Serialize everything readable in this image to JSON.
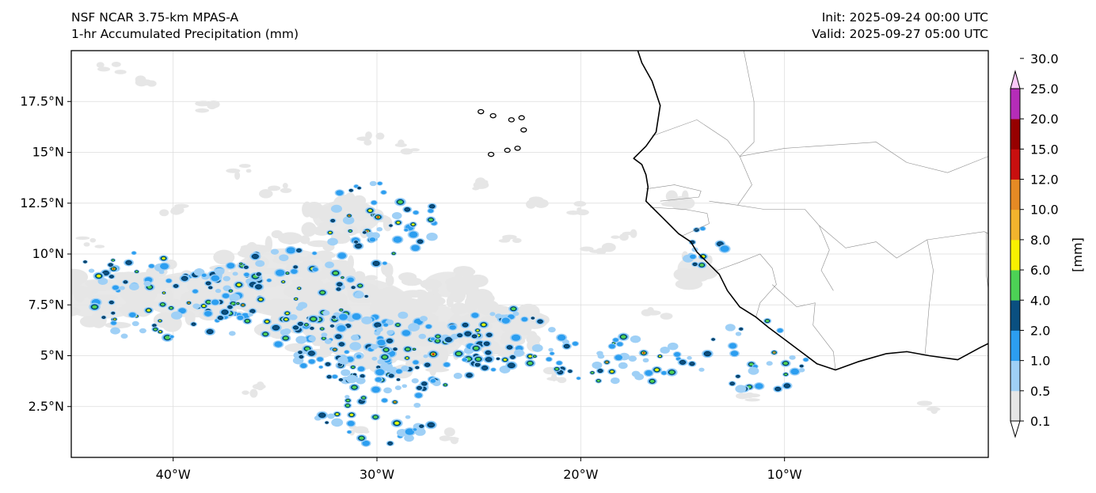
{
  "header": {
    "model": "NSF NCAR 3.75-km MPAS-A",
    "field": "1-hr Accumulated Precipitation (mm)",
    "init": "Init: 2025-09-24 00:00 UTC",
    "valid": "Valid: 2025-09-27 05:00 UTC"
  },
  "map": {
    "lon_range": [
      -45,
      0
    ],
    "lat_range": [
      0,
      20
    ],
    "lat_ticks": [
      {
        "value": 2.5,
        "label": "2.5°N"
      },
      {
        "value": 5,
        "label": "5°N"
      },
      {
        "value": 7.5,
        "label": "7.5°N"
      },
      {
        "value": 10,
        "label": "10°N"
      },
      {
        "value": 12.5,
        "label": "12.5°N"
      },
      {
        "value": 15,
        "label": "15°N"
      },
      {
        "value": 17.5,
        "label": "17.5°N"
      }
    ],
    "lon_ticks": [
      {
        "value": -40,
        "label": "40°W"
      },
      {
        "value": -30,
        "label": "30°W"
      },
      {
        "value": -20,
        "label": "20°W"
      },
      {
        "value": -10,
        "label": "10°W"
      }
    ],
    "coastline": [
      [
        -17.2,
        20.0
      ],
      [
        -17.0,
        19.4
      ],
      [
        -16.5,
        18.5
      ],
      [
        -16.1,
        17.3
      ],
      [
        -16.3,
        16.0
      ],
      [
        -16.8,
        15.3
      ],
      [
        -17.4,
        14.7
      ],
      [
        -17.0,
        14.4
      ],
      [
        -16.8,
        13.9
      ],
      [
        -16.7,
        13.3
      ],
      [
        -16.8,
        12.6
      ],
      [
        -16.4,
        12.2
      ],
      [
        -16.0,
        11.8
      ],
      [
        -15.6,
        11.4
      ],
      [
        -15.2,
        11.0
      ],
      [
        -14.6,
        10.6
      ],
      [
        -14.3,
        10.1
      ],
      [
        -13.7,
        9.5
      ],
      [
        -13.2,
        9.0
      ],
      [
        -12.8,
        8.2
      ],
      [
        -12.2,
        7.4
      ],
      [
        -11.4,
        6.9
      ],
      [
        -10.8,
        6.4
      ],
      [
        -10.0,
        5.8
      ],
      [
        -9.2,
        5.2
      ],
      [
        -8.4,
        4.6
      ],
      [
        -7.5,
        4.3
      ],
      [
        -6.4,
        4.7
      ],
      [
        -5.0,
        5.1
      ],
      [
        -4.0,
        5.2
      ],
      [
        -2.9,
        5.0
      ],
      [
        -1.5,
        4.8
      ],
      [
        -0.4,
        5.4
      ],
      [
        0.0,
        5.6
      ]
    ],
    "islands": [
      {
        "lon": -24.9,
        "lat": 17.0
      },
      {
        "lon": -24.3,
        "lat": 16.8
      },
      {
        "lon": -23.4,
        "lat": 16.6
      },
      {
        "lon": -22.8,
        "lat": 16.1
      },
      {
        "lon": -22.9,
        "lat": 16.7
      },
      {
        "lon": -23.6,
        "lat": 15.1
      },
      {
        "lon": -24.4,
        "lat": 14.9
      },
      {
        "lon": -23.1,
        "lat": 15.2
      }
    ],
    "borders": [
      [
        [
          -12.0,
          20.0
        ],
        [
          -11.5,
          17.5
        ],
        [
          -11.5,
          15.5
        ],
        [
          -12.2,
          14.8
        ]
      ],
      [
        [
          -16.5,
          15.8
        ],
        [
          -14.3,
          16.6
        ],
        [
          -12.8,
          15.6
        ],
        [
          -12.2,
          14.8
        ],
        [
          -11.6,
          13.4
        ],
        [
          -12.3,
          12.4
        ]
      ],
      [
        [
          -16.8,
          13.2
        ],
        [
          -15.4,
          13.4
        ],
        [
          -14.1,
          13.1
        ],
        [
          -14.2,
          12.8
        ],
        [
          -16.1,
          12.6
        ]
      ],
      [
        [
          -16.6,
          12.3
        ],
        [
          -14.9,
          12.2
        ],
        [
          -13.8,
          12.0
        ],
        [
          -13.7,
          11.5
        ],
        [
          -15.0,
          10.9
        ]
      ],
      [
        [
          -12.2,
          14.8
        ],
        [
          -10.0,
          15.2
        ],
        [
          -5.5,
          15.5
        ],
        [
          -4.0,
          14.5
        ],
        [
          -2.0,
          14.0
        ],
        [
          0.0,
          14.8
        ]
      ],
      [
        [
          -13.7,
          12.6
        ],
        [
          -12.3,
          12.4
        ],
        [
          -11.0,
          12.2
        ],
        [
          -9.0,
          12.2
        ],
        [
          -8.3,
          11.4
        ],
        [
          -7.8,
          10.2
        ],
        [
          -8.2,
          9.2
        ],
        [
          -7.6,
          8.2
        ]
      ],
      [
        [
          -13.3,
          9.2
        ],
        [
          -12.2,
          9.6
        ],
        [
          -11.2,
          10.0
        ],
        [
          -10.6,
          9.3
        ],
        [
          -10.4,
          8.5
        ],
        [
          -11.2,
          7.6
        ],
        [
          -11.4,
          6.9
        ]
      ],
      [
        [
          -10.6,
          8.5
        ],
        [
          -9.4,
          7.4
        ],
        [
          -8.5,
          7.6
        ],
        [
          -8.6,
          6.5
        ],
        [
          -7.6,
          5.2
        ],
        [
          -7.5,
          4.3
        ]
      ],
      [
        [
          -5.5,
          10.6
        ],
        [
          -4.5,
          9.8
        ],
        [
          -3.0,
          10.7
        ],
        [
          -2.7,
          9.2
        ],
        [
          -2.9,
          7.5
        ],
        [
          -3.1,
          5.1
        ]
      ],
      [
        [
          -3.0,
          10.7
        ],
        [
          -0.2,
          11.1
        ],
        [
          0.0,
          11.0
        ]
      ],
      [
        [
          -0.1,
          11.1
        ],
        [
          -0.1,
          9.0
        ],
        [
          0.3,
          6.2
        ],
        [
          0.0,
          5.7
        ]
      ],
      [
        [
          -5.5,
          10.6
        ],
        [
          -7.0,
          10.3
        ],
        [
          -8.3,
          11.4
        ]
      ]
    ],
    "light_rain_regions": [
      {
        "lon": -43.5,
        "lat": 7.8,
        "rlon": 2.8,
        "rlat": 1.4
      },
      {
        "lon": -39.0,
        "lat": 8.0,
        "rlon": 3.5,
        "rlat": 1.6
      },
      {
        "lon": -34.5,
        "lat": 8.6,
        "rlon": 3.8,
        "rlat": 2.4
      },
      {
        "lon": -31.0,
        "lat": 7.0,
        "rlon": 4.0,
        "rlat": 2.6
      },
      {
        "lon": -28.0,
        "lat": 6.2,
        "rlon": 3.2,
        "rlat": 2.2
      },
      {
        "lon": -24.5,
        "lat": 6.4,
        "rlon": 2.8,
        "rlat": 1.6
      },
      {
        "lon": -31.5,
        "lat": 11.8,
        "rlon": 2.2,
        "rlat": 1.2
      },
      {
        "lon": -26.5,
        "lat": 8.5,
        "rlon": 1.6,
        "rlat": 0.9
      },
      {
        "lon": -14.5,
        "lat": 9.3,
        "rlon": 1.0,
        "rlat": 0.8
      },
      {
        "lon": -15.0,
        "lat": 12.5,
        "rlon": 0.8,
        "rlat": 0.5
      }
    ],
    "light_patches": [
      {
        "lon": -43.0,
        "lat": 19.2
      },
      {
        "lon": -41.5,
        "lat": 18.4
      },
      {
        "lon": -38.5,
        "lat": 17.2
      },
      {
        "lon": -36.5,
        "lat": 14.1
      },
      {
        "lon": -35.0,
        "lat": 13.2
      },
      {
        "lon": -30.3,
        "lat": 15.6
      },
      {
        "lon": -28.6,
        "lat": 15.2
      },
      {
        "lon": -25.0,
        "lat": 13.4
      },
      {
        "lon": -22.0,
        "lat": 12.5
      },
      {
        "lon": -20.0,
        "lat": 12.2
      },
      {
        "lon": -17.8,
        "lat": 11.0
      },
      {
        "lon": -19.2,
        "lat": 10.2
      },
      {
        "lon": -16.3,
        "lat": 7.0
      },
      {
        "lon": -23.3,
        "lat": 10.7
      },
      {
        "lon": -21.0,
        "lat": 4.0
      },
      {
        "lon": -12.0,
        "lat": 2.8
      },
      {
        "lon": -3.0,
        "lat": 2.5
      },
      {
        "lon": -26.5,
        "lat": 1.0
      },
      {
        "lon": -40.0,
        "lat": 12.1
      },
      {
        "lon": -44.0,
        "lat": 10.6
      },
      {
        "lon": -36.0,
        "lat": 3.3
      },
      {
        "lon": -31.0,
        "lat": 1.3
      }
    ],
    "storm_regions": [
      {
        "lon": -40.0,
        "lat": 7.5,
        "rlon": 4.0,
        "rlat": 2.0,
        "n": 75
      },
      {
        "lon": -34.5,
        "lat": 7.8,
        "rlon": 4.0,
        "rlat": 2.5,
        "n": 95
      },
      {
        "lon": -31.5,
        "lat": 5.5,
        "rlon": 2.8,
        "rlat": 1.8,
        "n": 80
      },
      {
        "lon": -27.5,
        "lat": 5.2,
        "rlon": 3.2,
        "rlat": 2.0,
        "n": 70
      },
      {
        "lon": -23.5,
        "lat": 5.8,
        "rlon": 2.8,
        "rlat": 1.6,
        "n": 50
      },
      {
        "lon": -30.0,
        "lat": 11.5,
        "rlon": 3.0,
        "rlat": 2.0,
        "n": 55
      },
      {
        "lon": -30.0,
        "lat": 2.4,
        "rlon": 3.0,
        "rlat": 1.8,
        "n": 45
      },
      {
        "lon": -18.0,
        "lat": 4.8,
        "rlon": 3.6,
        "rlat": 1.2,
        "n": 45
      },
      {
        "lon": -11.5,
        "lat": 5.0,
        "rlon": 3.0,
        "rlat": 1.8,
        "n": 30
      },
      {
        "lon": -14.0,
        "lat": 10.3,
        "rlon": 1.2,
        "rlat": 1.0,
        "n": 12
      },
      {
        "lon": -42.0,
        "lat": 9.3,
        "rlon": 2.5,
        "rlat": 1.0,
        "n": 18
      }
    ]
  },
  "colorbar": {
    "unit_label": "[mm]",
    "levels": [
      "0.1",
      "0.5",
      "1.0",
      "2.0",
      "4.0",
      "6.0",
      "8.0",
      "10.0",
      "12.0",
      "15.0",
      "20.0",
      "25.0",
      "30.0"
    ],
    "colors": [
      "#e6e6e6",
      "#9fd0f6",
      "#2c9ef0",
      "#0a4f80",
      "#4cd155",
      "#f8f100",
      "#f2b42d",
      "#e58a24",
      "#c80f0f",
      "#960000",
      "#b52cb8",
      "#fbc8fa"
    ]
  }
}
